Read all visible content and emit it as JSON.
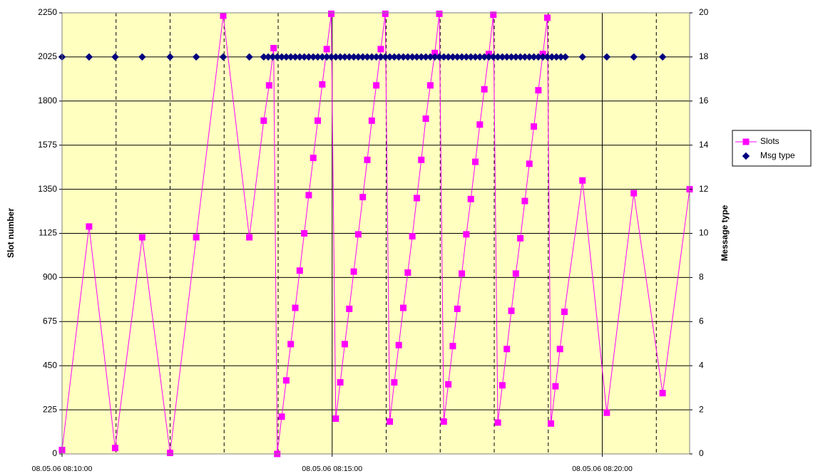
{
  "chart_data": {
    "type": "line",
    "y_axis_label": "Slot number",
    "y2_axis_label": "Message type",
    "xlim": [
      "08.05.06 08:10:00",
      "08.05.06 08:21:37"
    ],
    "xticks": [
      "08.05.06 08:10:00",
      "08.05.06 08:15:00",
      "08.05.06 08:20:00"
    ],
    "x_minor_gridlines": [
      "08.05.06 08:11:00",
      "08.05.06 08:12:00",
      "08.05.06 08:13:00",
      "08.05.06 08:14:00",
      "08.05.06 08:16:00",
      "08.05.06 08:17:00",
      "08.05.06 08:18:00",
      "08.05.06 08:19:00",
      "08.05.06 08:21:00"
    ],
    "ylim": [
      0,
      2250
    ],
    "yticks": [
      0,
      225,
      450,
      675,
      900,
      1125,
      1350,
      1575,
      1800,
      2025,
      2250
    ],
    "y2lim": [
      0,
      20
    ],
    "y2ticks": [
      0,
      2,
      4,
      6,
      8,
      10,
      12,
      14,
      16,
      18,
      20
    ],
    "grid": true,
    "legend": "right",
    "background": "#ffffc0",
    "series": [
      {
        "name": "Slots",
        "color": "#ff00ff",
        "marker": "square",
        "line": true,
        "x": [
          "08.05.06 08:10:00",
          "08.05.06 08:10:30",
          "08.05.06 08:10:59",
          "08.05.06 08:11:29",
          "08.05.06 08:12:00",
          "08.05.06 08:12:29",
          "08.05.06 08:12:59",
          "08.05.06 08:13:28",
          "08.05.06 08:13:44",
          "08.05.06 08:13:50",
          "08.05.06 08:13:55",
          "08.05.06 08:13:59",
          "08.05.06 08:14:04",
          "08.05.06 08:14:09",
          "08.05.06 08:14:14",
          "08.05.06 08:14:19",
          "08.05.06 08:14:24",
          "08.05.06 08:14:29",
          "08.05.06 08:14:34",
          "08.05.06 08:14:39",
          "08.05.06 08:14:44",
          "08.05.06 08:14:49",
          "08.05.06 08:14:54",
          "08.05.06 08:14:59",
          "08.05.06 08:15:04",
          "08.05.06 08:15:09",
          "08.05.06 08:15:14",
          "08.05.06 08:15:19",
          "08.05.06 08:15:24",
          "08.05.06 08:15:29",
          "08.05.06 08:15:34",
          "08.05.06 08:15:39",
          "08.05.06 08:15:44",
          "08.05.06 08:15:49",
          "08.05.06 08:15:54",
          "08.05.06 08:15:59",
          "08.05.06 08:16:04",
          "08.05.06 08:16:09",
          "08.05.06 08:16:14",
          "08.05.06 08:16:19",
          "08.05.06 08:16:24",
          "08.05.06 08:16:29",
          "08.05.06 08:16:34",
          "08.05.06 08:16:39",
          "08.05.06 08:16:44",
          "08.05.06 08:16:49",
          "08.05.06 08:16:54",
          "08.05.06 08:16:59",
          "08.05.06 08:17:04",
          "08.05.06 08:17:09",
          "08.05.06 08:17:14",
          "08.05.06 08:17:19",
          "08.05.06 08:17:24",
          "08.05.06 08:17:29",
          "08.05.06 08:17:34",
          "08.05.06 08:17:39",
          "08.05.06 08:17:44",
          "08.05.06 08:17:49",
          "08.05.06 08:17:54",
          "08.05.06 08:17:59",
          "08.05.06 08:18:04",
          "08.05.06 08:18:09",
          "08.05.06 08:18:14",
          "08.05.06 08:18:19",
          "08.05.06 08:18:24",
          "08.05.06 08:18:29",
          "08.05.06 08:18:34",
          "08.05.06 08:18:39",
          "08.05.06 08:18:44",
          "08.05.06 08:18:49",
          "08.05.06 08:18:54",
          "08.05.06 08:18:59",
          "08.05.06 08:19:03",
          "08.05.06 08:19:08",
          "08.05.06 08:19:13",
          "08.05.06 08:19:18",
          "08.05.06 08:19:38",
          "08.05.06 08:20:05",
          "08.05.06 08:20:35",
          "08.05.06 08:21:07",
          "08.05.06 08:21:37"
        ],
        "values": [
          20,
          1160,
          30,
          1105,
          5,
          1105,
          2235,
          1105,
          1700,
          1880,
          2070,
          0,
          190,
          375,
          560,
          745,
          935,
          1125,
          1320,
          1510,
          1700,
          1885,
          2065,
          2245,
          180,
          365,
          560,
          740,
          930,
          1120,
          1310,
          1500,
          1700,
          1880,
          2065,
          2245,
          165,
          365,
          555,
          745,
          925,
          1110,
          1305,
          1500,
          1710,
          1880,
          2045,
          2245,
          165,
          355,
          550,
          740,
          920,
          1120,
          1300,
          1490,
          1680,
          1860,
          2040,
          2240,
          160,
          350,
          535,
          730,
          920,
          1100,
          1290,
          1480,
          1670,
          1855,
          2040,
          2225,
          155,
          345,
          535,
          725,
          1395,
          210,
          1330,
          310,
          1350
        ]
      },
      {
        "name": "Msg type",
        "color": "#000080",
        "marker": "diamond",
        "line": false,
        "axis": "y2",
        "x": [
          "08.05.06 08:10:00",
          "08.05.06 08:10:30",
          "08.05.06 08:10:59",
          "08.05.06 08:11:29",
          "08.05.06 08:12:00",
          "08.05.06 08:12:29",
          "08.05.06 08:12:59",
          "08.05.06 08:13:28",
          "08.05.06 08:13:44",
          "08.05.06 08:13:49",
          "08.05.06 08:13:54",
          "08.05.06 08:13:59",
          "08.05.06 08:14:04",
          "08.05.06 08:14:09",
          "08.05.06 08:14:14",
          "08.05.06 08:14:19",
          "08.05.06 08:14:24",
          "08.05.06 08:14:29",
          "08.05.06 08:14:34",
          "08.05.06 08:14:39",
          "08.05.06 08:14:44",
          "08.05.06 08:14:49",
          "08.05.06 08:14:54",
          "08.05.06 08:14:59",
          "08.05.06 08:15:04",
          "08.05.06 08:15:09",
          "08.05.06 08:15:14",
          "08.05.06 08:15:19",
          "08.05.06 08:15:24",
          "08.05.06 08:15:29",
          "08.05.06 08:15:34",
          "08.05.06 08:15:39",
          "08.05.06 08:15:44",
          "08.05.06 08:15:49",
          "08.05.06 08:15:54",
          "08.05.06 08:15:59",
          "08.05.06 08:16:04",
          "08.05.06 08:16:09",
          "08.05.06 08:16:14",
          "08.05.06 08:16:19",
          "08.05.06 08:16:24",
          "08.05.06 08:16:29",
          "08.05.06 08:16:34",
          "08.05.06 08:16:39",
          "08.05.06 08:16:44",
          "08.05.06 08:16:49",
          "08.05.06 08:16:54",
          "08.05.06 08:16:59",
          "08.05.06 08:17:04",
          "08.05.06 08:17:09",
          "08.05.06 08:17:14",
          "08.05.06 08:17:19",
          "08.05.06 08:17:24",
          "08.05.06 08:17:29",
          "08.05.06 08:17:34",
          "08.05.06 08:17:39",
          "08.05.06 08:17:44",
          "08.05.06 08:17:49",
          "08.05.06 08:17:54",
          "08.05.06 08:17:59",
          "08.05.06 08:18:04",
          "08.05.06 08:18:09",
          "08.05.06 08:18:14",
          "08.05.06 08:18:19",
          "08.05.06 08:18:24",
          "08.05.06 08:18:29",
          "08.05.06 08:18:34",
          "08.05.06 08:18:39",
          "08.05.06 08:18:44",
          "08.05.06 08:18:49",
          "08.05.06 08:18:54",
          "08.05.06 08:18:59",
          "08.05.06 08:19:04",
          "08.05.06 08:19:09",
          "08.05.06 08:19:14",
          "08.05.06 08:19:19",
          "08.05.06 08:19:38",
          "08.05.06 08:20:05",
          "08.05.06 08:20:35",
          "08.05.06 08:21:07"
        ],
        "values": [
          18,
          18,
          18,
          18,
          18,
          18,
          18,
          18,
          18,
          18,
          18,
          18,
          18,
          18,
          18,
          18,
          18,
          18,
          18,
          18,
          18,
          18,
          18,
          18,
          18,
          18,
          18,
          18,
          18,
          18,
          18,
          18,
          18,
          18,
          18,
          18,
          18,
          18,
          18,
          18,
          18,
          18,
          18,
          18,
          18,
          18,
          18,
          18,
          18,
          18,
          18,
          18,
          18,
          18,
          18,
          18,
          18,
          18,
          18,
          18,
          18,
          18,
          18,
          18,
          18,
          18,
          18,
          18,
          18,
          18,
          18,
          18,
          18,
          18,
          18,
          18,
          18,
          18,
          18,
          18
        ]
      }
    ]
  }
}
